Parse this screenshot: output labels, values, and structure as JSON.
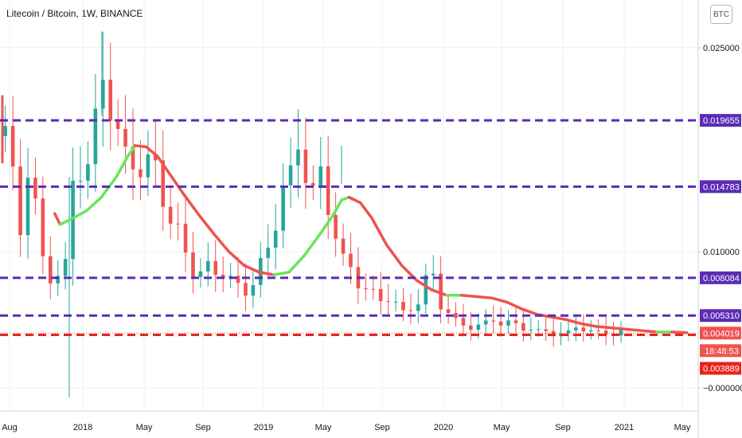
{
  "title": "Litecoin / Bitcoin, 1W, BINANCE",
  "currency_button": "BTC",
  "chart_data": {
    "type": "candlestick",
    "price_range": [
      -0.0017,
      0.0285
    ],
    "x_ticks": [
      "Aug",
      "2018",
      "May",
      "Sep",
      "2019",
      "May",
      "Sep",
      "2020",
      "May",
      "Sep",
      "2021",
      "May"
    ],
    "y_ticks": [
      {
        "value": 0.025,
        "label": "0.025000"
      },
      {
        "value": 0.01,
        "label": "0.010000"
      },
      {
        "value": 0.0,
        "label": "−0.000000"
      }
    ],
    "horizontal_levels": [
      {
        "value": 0.019655,
        "label": "0.019655",
        "color": "#5b2cb5"
      },
      {
        "value": 0.014783,
        "label": "0.014783",
        "color": "#5b2cb5"
      },
      {
        "value": 0.008084,
        "label": "0.008084",
        "color": "#5b2cb5"
      },
      {
        "value": 0.00531,
        "label": "0.005310",
        "color": "#5b2cb5"
      },
      {
        "value": 0.003889,
        "label": "0.003889",
        "color": "#e8241a"
      }
    ],
    "current_price": {
      "value": 0.004019,
      "label": "0.004019",
      "countdown": "18:48:53"
    },
    "moving_average": {
      "points": [
        [
          6.8,
          0.0128
        ],
        [
          7.5,
          0.012
        ],
        [
          9,
          0.0124
        ],
        [
          11,
          0.013
        ],
        [
          13,
          0.014
        ],
        [
          15,
          0.0155
        ],
        [
          16.5,
          0.017
        ],
        [
          17.5,
          0.0178
        ],
        [
          19,
          0.0177
        ],
        [
          20.5,
          0.017
        ],
        [
          22,
          0.0158
        ],
        [
          24,
          0.0142
        ],
        [
          26,
          0.0127
        ],
        [
          28,
          0.0113
        ],
        [
          30,
          0.01
        ],
        [
          32,
          0.009
        ],
        [
          34,
          0.0085
        ],
        [
          36,
          0.0083
        ],
        [
          38,
          0.0085
        ],
        [
          40,
          0.0097
        ],
        [
          42,
          0.0112
        ],
        [
          44,
          0.0128
        ],
        [
          45,
          0.0138
        ],
        [
          46,
          0.014
        ],
        [
          47.5,
          0.0136
        ],
        [
          49,
          0.0125
        ],
        [
          51,
          0.0105
        ],
        [
          53,
          0.009
        ],
        [
          55,
          0.0079
        ],
        [
          57,
          0.0072
        ],
        [
          59,
          0.0068
        ],
        [
          61,
          0.0068
        ],
        [
          63,
          0.0067
        ],
        [
          65,
          0.0066
        ],
        [
          67,
          0.0063
        ],
        [
          69,
          0.0058
        ],
        [
          71,
          0.0054
        ],
        [
          73,
          0.0052
        ],
        [
          75,
          0.005
        ],
        [
          77,
          0.0047
        ],
        [
          79,
          0.0045
        ],
        [
          81,
          0.0044
        ],
        [
          83,
          0.0043
        ],
        [
          85,
          0.0042
        ],
        [
          87,
          0.0041
        ],
        [
          89,
          0.0041
        ],
        [
          91,
          0.00405
        ]
      ],
      "rising_color": "#69e65a",
      "falling_color": "#f0524c"
    },
    "candle_colors": {
      "up": "#26a69a",
      "down": "#ef5350"
    }
  }
}
